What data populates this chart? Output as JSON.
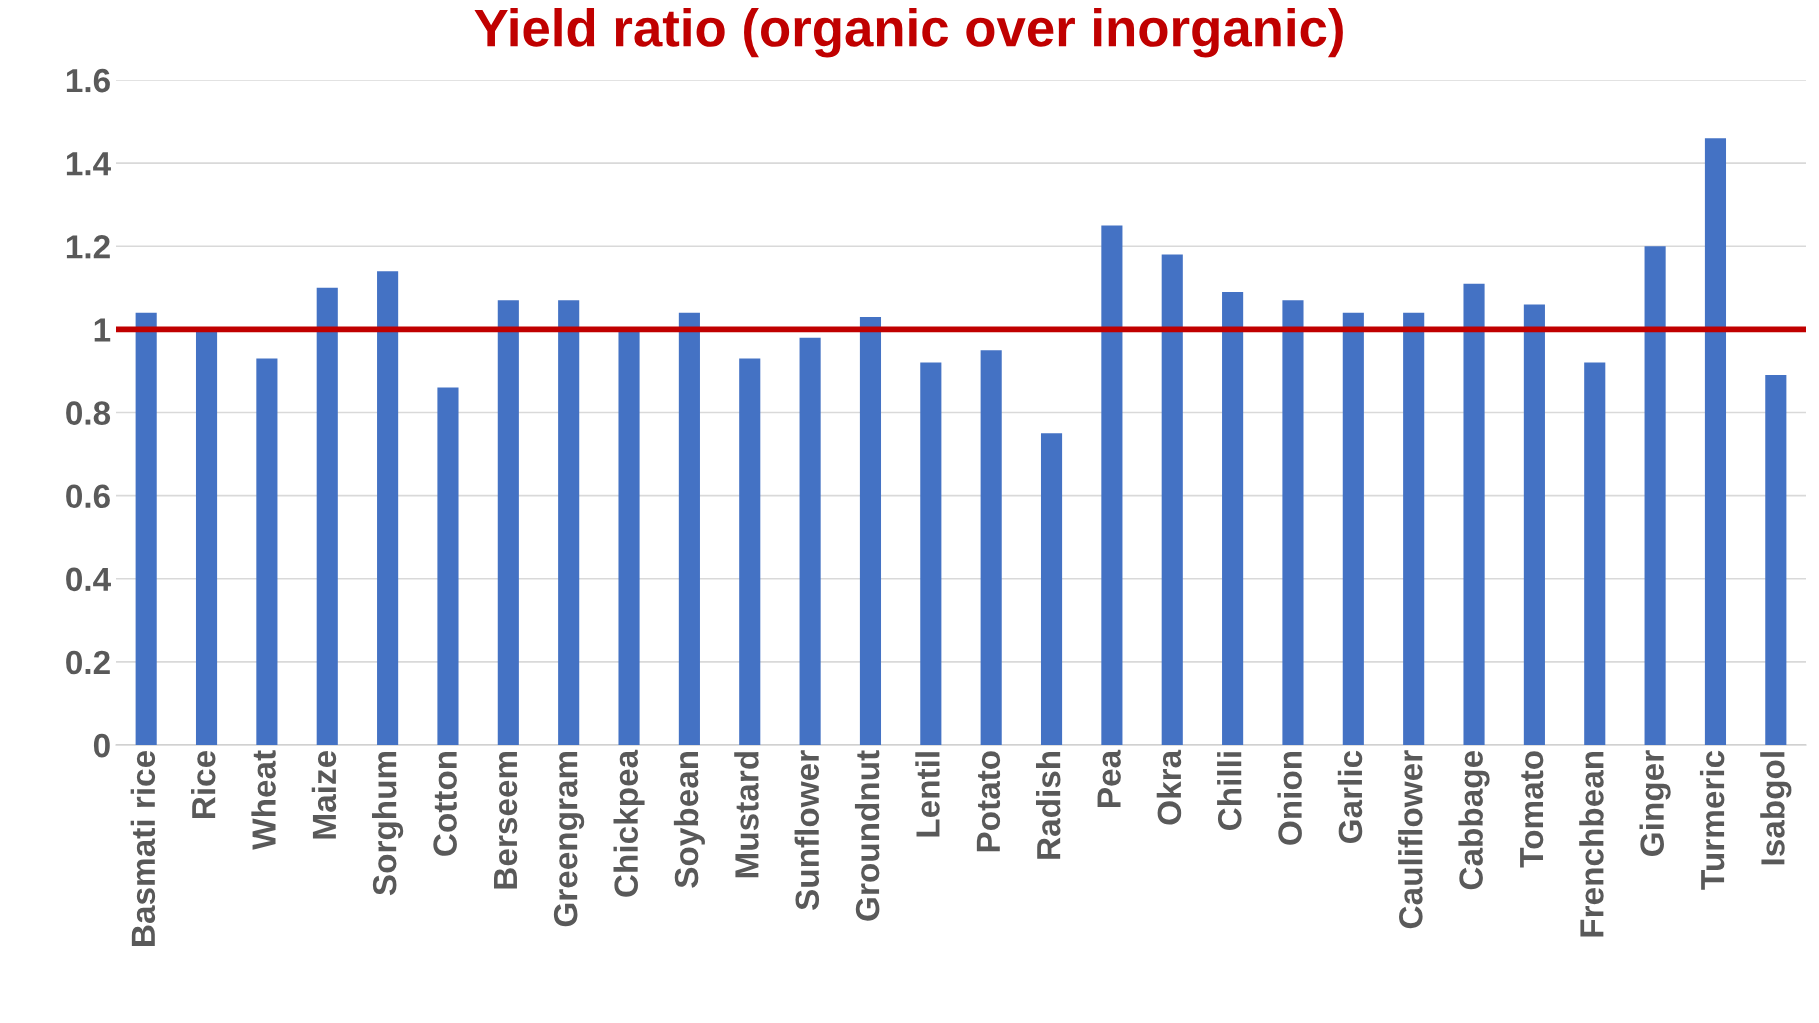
{
  "chart_data": {
    "type": "bar",
    "title": "Yield ratio (organic over inorganic)",
    "categories": [
      "Basmati rice",
      "Rice",
      "Wheat",
      "Maize",
      "Sorghum",
      "Cotton",
      "Berseem",
      "Greengram",
      "Chickpea",
      "Soybean",
      "Mustard",
      "Sunflower",
      "Groundnut",
      "Lentil",
      "Potato",
      "Radish",
      "Pea",
      "Okra",
      "Chilli",
      "Onion",
      "Garlic",
      "Cauliflower",
      "Cabbage",
      "Tomato",
      "Frenchbean",
      "Ginger",
      "Turmeric",
      "Isabgol"
    ],
    "values": [
      1.04,
      1.0,
      0.93,
      1.1,
      1.14,
      0.86,
      1.07,
      1.07,
      1.0,
      1.04,
      0.93,
      0.98,
      1.03,
      0.92,
      0.95,
      0.75,
      1.25,
      1.18,
      1.09,
      1.07,
      1.04,
      1.04,
      1.11,
      1.06,
      0.92,
      1.2,
      1.46,
      0.89
    ],
    "color": "#4472c4",
    "ylim": [
      0,
      1.6
    ],
    "yticks": [
      0,
      0.2,
      0.4,
      0.6,
      0.8,
      1,
      1.2,
      1.4,
      1.6
    ],
    "grid": "y",
    "ref_lines": [
      {
        "axis": "y",
        "value": 1,
        "color": "#c00000"
      }
    ]
  }
}
